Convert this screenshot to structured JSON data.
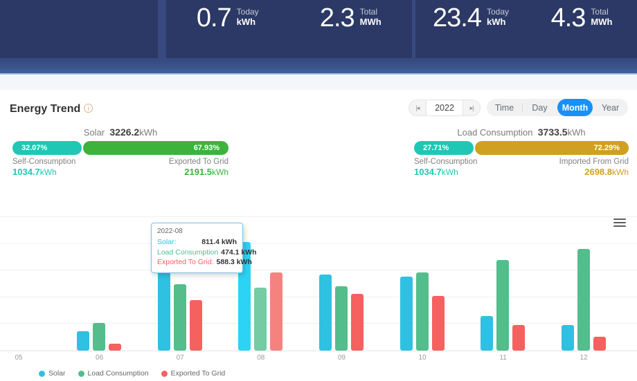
{
  "header": {
    "stats": [
      {
        "value": "0.7",
        "period": "Today",
        "unit": "kWh"
      },
      {
        "value": "2.3",
        "period": "Total",
        "unit": "MWh"
      },
      {
        "value": "23.4",
        "period": "Today",
        "unit": "kWh"
      },
      {
        "value": "4.3",
        "period": "Total",
        "unit": "MWh"
      }
    ]
  },
  "trend": {
    "title": "Energy Trend",
    "info_icon": "i",
    "year": "2022",
    "tabs": [
      {
        "label": "Time",
        "active": false
      },
      {
        "label": "Day",
        "active": false
      },
      {
        "label": "Month",
        "active": true
      },
      {
        "label": "Year",
        "active": false
      }
    ],
    "active_tab_color": "#1890f8",
    "solar": {
      "label": "Solar",
      "total": "3226.2",
      "unit": "kWh",
      "left_pct": "32.07%",
      "right_pct": "67.93%",
      "left_label": "Self-Consumption",
      "left_value": "1034.7",
      "left_unit": "kWh",
      "left_color": "#1fc7b4",
      "right_label": "Exported To Grid",
      "right_value": "2191.5",
      "right_unit": "kWh",
      "right_color": "#3eb33c"
    },
    "load": {
      "label": "Load Consumption",
      "total": "3733.5",
      "unit": "kWh",
      "left_pct": "27.71%",
      "right_pct": "72.29%",
      "left_label": "Self-Consumption",
      "left_value": "1034.7",
      "left_unit": "kWh",
      "left_color": "#1fc7b4",
      "right_label": "Imported From Grid",
      "right_value": "2698.8",
      "right_unit": "kWh",
      "right_color": "#cfa021"
    }
  },
  "chart_data": {
    "type": "bar",
    "title": "Energy Trend monthly bars",
    "categories": [
      "05",
      "06",
      "07",
      "08",
      "09",
      "10",
      "11",
      "12"
    ],
    "series": [
      {
        "name": "Solar",
        "color": "#2fc1e1",
        "highlight_color": "#2cd3f5",
        "values": [
          0,
          144,
          690,
          811.4,
          572,
          557,
          259,
          190
        ]
      },
      {
        "name": "Load Consumption",
        "color": "#54bd8c",
        "highlight_color": "#74cba4",
        "values": [
          0,
          209,
          500,
          474.1,
          483,
          588,
          677,
          762
        ]
      },
      {
        "name": "Exported To Grid",
        "color": "#f4615f",
        "highlight_color": "#f6827f",
        "values": [
          0,
          53,
          380,
          588.3,
          426,
          412,
          193,
          103
        ]
      }
    ],
    "xlabel": "month",
    "ylabel": "kWh",
    "ylim": [
      0,
      1000
    ],
    "grid_interval": 200,
    "grid": true,
    "highlight_index": 3,
    "legend_position": "bottom-left",
    "legend": [
      "Solar",
      "Load Consumption",
      "Exported To Grid"
    ],
    "tooltip": {
      "title": "2022-08",
      "rows": [
        {
          "label": "Solar:",
          "value": "811.4 kWh"
        },
        {
          "label": "Load Consumption",
          "value": "474.1 kWh"
        },
        {
          "label": "Exported To Grid:",
          "value": "588.3 kWh"
        }
      ]
    }
  }
}
